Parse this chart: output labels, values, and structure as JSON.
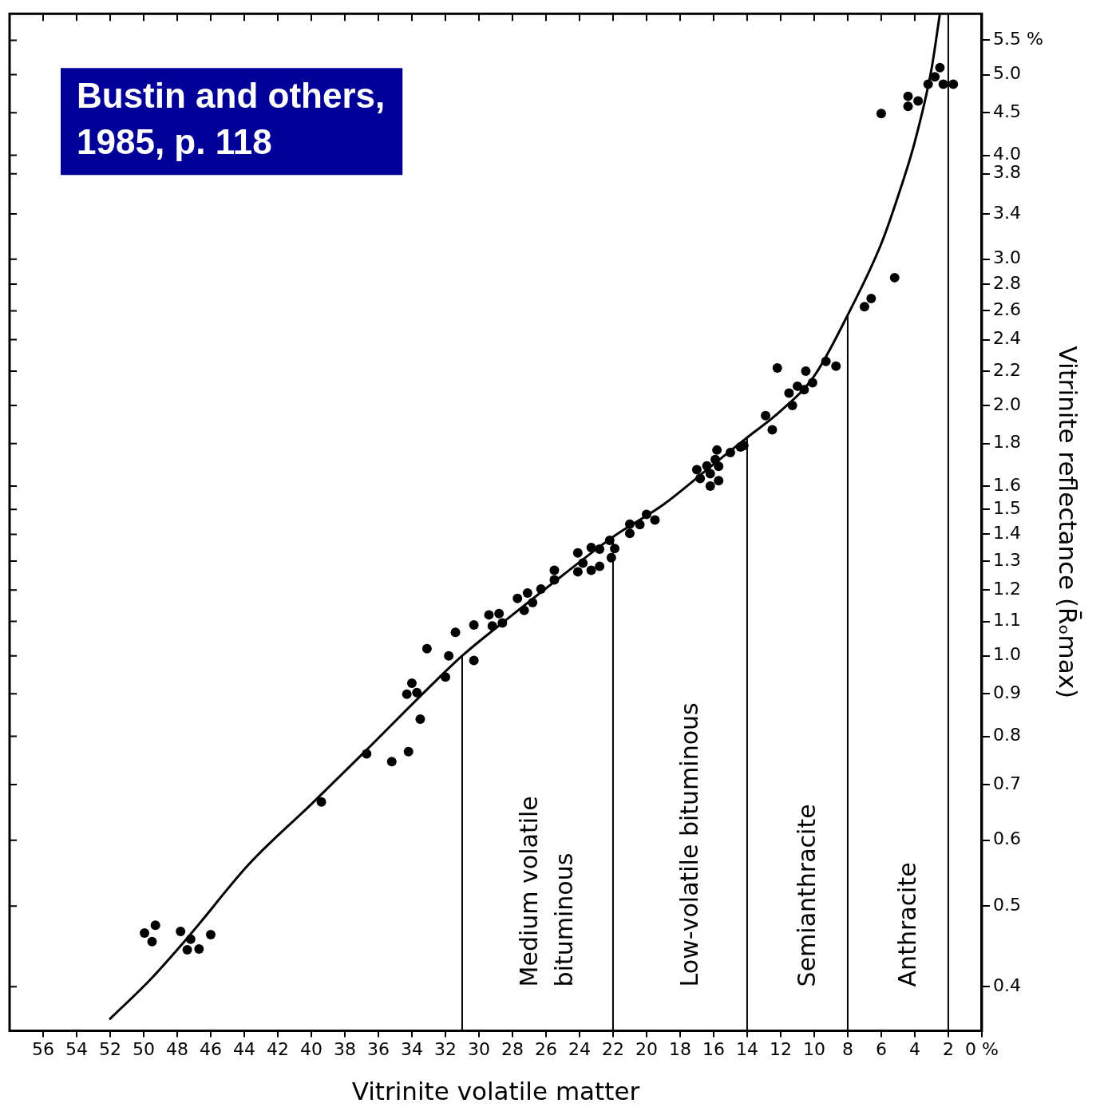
{
  "chart_data": {
    "type": "scatter",
    "xlabel": "Vitrinite volatile matter",
    "ylabel": "Vitrinite reflectance (R̄ₒmax)",
    "log": "y",
    "marker": "circle",
    "xlim": [
      58,
      0
    ],
    "xticks": [
      {
        "value": 0,
        "label": "0 %"
      },
      2,
      4,
      6,
      8,
      10,
      12,
      14,
      16,
      18,
      20,
      22,
      24,
      26,
      28,
      30,
      32,
      34,
      36,
      38,
      40,
      42,
      44,
      46,
      48,
      50,
      52,
      54,
      56
    ],
    "ylim": [
      0.354,
      5.92
    ],
    "yticks": [
      0.4,
      0.5,
      0.6,
      0.7,
      0.8,
      0.9,
      {
        "value": 1,
        "label": "1.0"
      },
      1.1,
      1.2,
      1.3,
      1.4,
      1.5,
      1.6,
      1.8,
      {
        "value": 2,
        "label": "2.0"
      },
      2.2,
      2.4,
      2.6,
      2.8,
      {
        "value": 3,
        "label": "3.0"
      },
      3.4,
      3.8,
      {
        "value": 4,
        "label": "4.0"
      },
      4.5,
      {
        "value": 5,
        "label": "5.0"
      },
      {
        "value": 5.5,
        "label": "5.5 %"
      }
    ],
    "annotations": [
      "Bustin and others, 1985, p. 118",
      "Medium volatile bituminous",
      "Low-volatile bituminous",
      "Semianthracite",
      "Anthracite"
    ],
    "ref_lines": [
      {
        "axis": "x",
        "value": 31
      },
      {
        "axis": "x",
        "value": 22
      },
      {
        "axis": "x",
        "value": 14
      },
      {
        "axis": "x",
        "value": 8
      },
      {
        "axis": "x",
        "value": 2
      }
    ],
    "series": [
      {
        "type": "scatter",
        "color": "#000000",
        "x": [
          49.95,
          49.3,
          49.5,
          47.8,
          47.2,
          47.4,
          46.7,
          46.0,
          39.4,
          36.7,
          35.2,
          34.2,
          33.5,
          34.3,
          34.0,
          33.7,
          33.1,
          32.0,
          31.8,
          31.4,
          30.3,
          30.3,
          29.4,
          29.2,
          28.8,
          28.6,
          27.7,
          27.3,
          27.1,
          26.8,
          26.3,
          25.5,
          25.5,
          24.1,
          24.1,
          23.8,
          23.3,
          23.3,
          22.8,
          22.8,
          22.2,
          22.1,
          21.9,
          21.0,
          21.0,
          20.4,
          20.0,
          19.5,
          17.0,
          16.8,
          16.4,
          16.2,
          16.2,
          15.9,
          15.8,
          15.7,
          15.7,
          15.0,
          14.4,
          14.2,
          12.9,
          12.5,
          12.2,
          11.5,
          11.3,
          11.0,
          10.6,
          10.5,
          10.1,
          9.3,
          8.7,
          7.0,
          6.6,
          5.2,
          6.0,
          4.4,
          4.4,
          3.8,
          3.2,
          2.8,
          2.5,
          2.3,
          1.7
        ],
        "values": [
          0.464,
          0.474,
          0.453,
          0.466,
          0.456,
          0.443,
          0.444,
          0.462,
          0.667,
          0.762,
          0.746,
          0.767,
          0.839,
          0.899,
          0.927,
          0.903,
          1.02,
          0.943,
          1.0,
          1.067,
          0.987,
          1.089,
          1.12,
          1.086,
          1.124,
          1.095,
          1.172,
          1.134,
          1.19,
          1.159,
          1.203,
          1.267,
          1.234,
          1.33,
          1.262,
          1.293,
          1.35,
          1.267,
          1.281,
          1.344,
          1.377,
          1.312,
          1.346,
          1.44,
          1.404,
          1.438,
          1.479,
          1.457,
          1.674,
          1.634,
          1.692,
          1.6,
          1.656,
          1.722,
          1.768,
          1.69,
          1.624,
          1.756,
          1.783,
          1.79,
          1.945,
          1.87,
          2.22,
          2.07,
          2.0,
          2.11,
          2.09,
          2.2,
          2.13,
          2.26,
          2.23,
          2.63,
          2.69,
          2.85,
          4.49,
          4.58,
          4.71,
          4.65,
          4.87,
          4.97,
          5.1,
          4.87,
          4.87
        ]
      },
      {
        "type": "line",
        "color": "#000000",
        "marker": "none",
        "x": [
          52,
          49.6,
          47.3,
          43.7,
          40,
          36.8,
          33,
          31,
          28,
          25,
          22,
          19,
          16,
          14,
          12,
          10,
          8,
          6,
          5,
          4,
          3,
          2.5
        ],
        "values": [
          0.366,
          0.408,
          0.46,
          0.562,
          0.663,
          0.767,
          0.915,
          1.0,
          1.12,
          1.25,
          1.39,
          1.52,
          1.7,
          1.83,
          1.97,
          2.17,
          2.57,
          3.13,
          3.57,
          4.15,
          5.08,
          5.92
        ]
      }
    ]
  }
}
